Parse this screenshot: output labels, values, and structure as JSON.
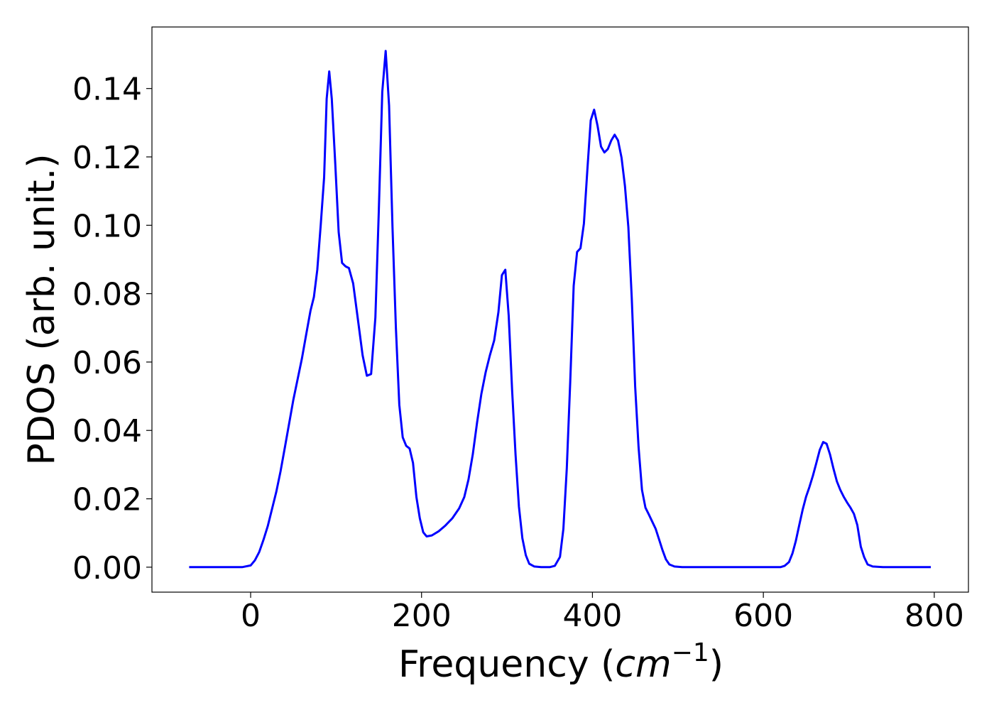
{
  "chart_data": {
    "type": "line",
    "xlabel": [
      "Frequency (",
      "cm",
      "−1",
      ")"
    ],
    "ylabel": "PDOS (arb. unit.)",
    "xlim": [
      -115.5,
      840
    ],
    "ylim": [
      -0.0073,
      0.158
    ],
    "xticks": [
      0,
      200,
      400,
      600,
      800
    ],
    "yticks": [
      {
        "value": 0,
        "label": "0.00"
      },
      {
        "value": 0.02,
        "label": "0.02"
      },
      {
        "value": 0.04,
        "label": "0.04"
      },
      {
        "value": 0.06,
        "label": "0.06"
      },
      {
        "value": 0.08,
        "label": "0.08"
      },
      {
        "value": 0.1,
        "label": "0.10"
      },
      {
        "value": 0.12,
        "label": "0.12"
      },
      {
        "value": 0.14,
        "label": "0.14"
      }
    ],
    "grid": false,
    "series": [
      {
        "color": "#0000ff",
        "x": [
          -72,
          -10,
          0,
          5,
          10,
          15,
          20,
          25,
          30,
          35,
          40,
          45,
          50,
          55,
          60,
          65,
          70,
          74,
          78,
          82,
          86,
          89,
          92,
          95,
          99,
          103,
          107,
          111,
          115,
          120,
          126,
          131,
          136,
          141,
          146,
          150,
          154,
          158,
          162,
          166,
          170,
          174,
          178,
          182,
          186,
          190,
          194,
          198,
          202,
          206,
          212,
          220,
          228,
          236,
          244,
          250,
          255,
          260,
          265,
          270,
          275,
          280,
          285,
          290,
          294,
          298,
          302,
          306,
          310,
          314,
          318,
          322,
          326,
          332,
          340,
          350,
          356,
          362,
          366,
          370,
          374,
          378,
          382,
          386,
          390,
          394,
          398,
          402,
          406,
          410,
          414,
          418,
          422,
          426,
          430,
          434,
          438,
          442,
          446,
          450,
          454,
          458,
          462,
          466,
          470,
          474,
          478,
          482,
          486,
          490,
          496,
          505,
          620,
          625,
          630,
          634,
          638,
          642,
          646,
          650,
          654,
          658,
          662,
          666,
          670,
          674,
          678,
          682,
          686,
          690,
          694,
          698,
          702,
          706,
          710,
          714,
          718,
          722,
          728,
          740,
          796
        ],
        "values": [
          0,
          0,
          0.0005,
          0.002,
          0.0044,
          0.008,
          0.012,
          0.017,
          0.022,
          0.028,
          0.035,
          0.042,
          0.049,
          0.055,
          0.061,
          0.068,
          0.075,
          0.079,
          0.087,
          0.1,
          0.114,
          0.137,
          0.145,
          0.137,
          0.118,
          0.098,
          0.089,
          0.088,
          0.0875,
          0.083,
          0.0715,
          0.062,
          0.056,
          0.0565,
          0.073,
          0.104,
          0.139,
          0.151,
          0.135,
          0.0995,
          0.07,
          0.0475,
          0.038,
          0.0355,
          0.0347,
          0.0305,
          0.0205,
          0.0143,
          0.0102,
          0.009,
          0.0093,
          0.0105,
          0.0122,
          0.0143,
          0.0172,
          0.0205,
          0.0257,
          0.033,
          0.0424,
          0.0507,
          0.057,
          0.062,
          0.0663,
          0.0746,
          0.0854,
          0.087,
          0.0735,
          0.0517,
          0.033,
          0.0177,
          0.0085,
          0.0035,
          0.001,
          0.0002,
          0,
          0,
          0.0004,
          0.003,
          0.0112,
          0.0289,
          0.054,
          0.0823,
          0.0922,
          0.0933,
          0.1005,
          0.116,
          0.1307,
          0.1338,
          0.129,
          0.123,
          0.1213,
          0.1223,
          0.1248,
          0.1265,
          0.1248,
          0.1198,
          0.1115,
          0.0995,
          0.0787,
          0.0528,
          0.0351,
          0.0226,
          0.0174,
          0.0154,
          0.0133,
          0.0112,
          0.0081,
          0.005,
          0.0023,
          0.0008,
          0.0002,
          0,
          0,
          0.0004,
          0.0015,
          0.004,
          0.0077,
          0.0123,
          0.0168,
          0.0206,
          0.0235,
          0.0268,
          0.0305,
          0.0343,
          0.0366,
          0.0361,
          0.033,
          0.0289,
          0.0251,
          0.0226,
          0.0206,
          0.0189,
          0.0174,
          0.0156,
          0.0123,
          0.006,
          0.0029,
          0.0008,
          0.0002,
          0,
          0
        ]
      }
    ]
  }
}
